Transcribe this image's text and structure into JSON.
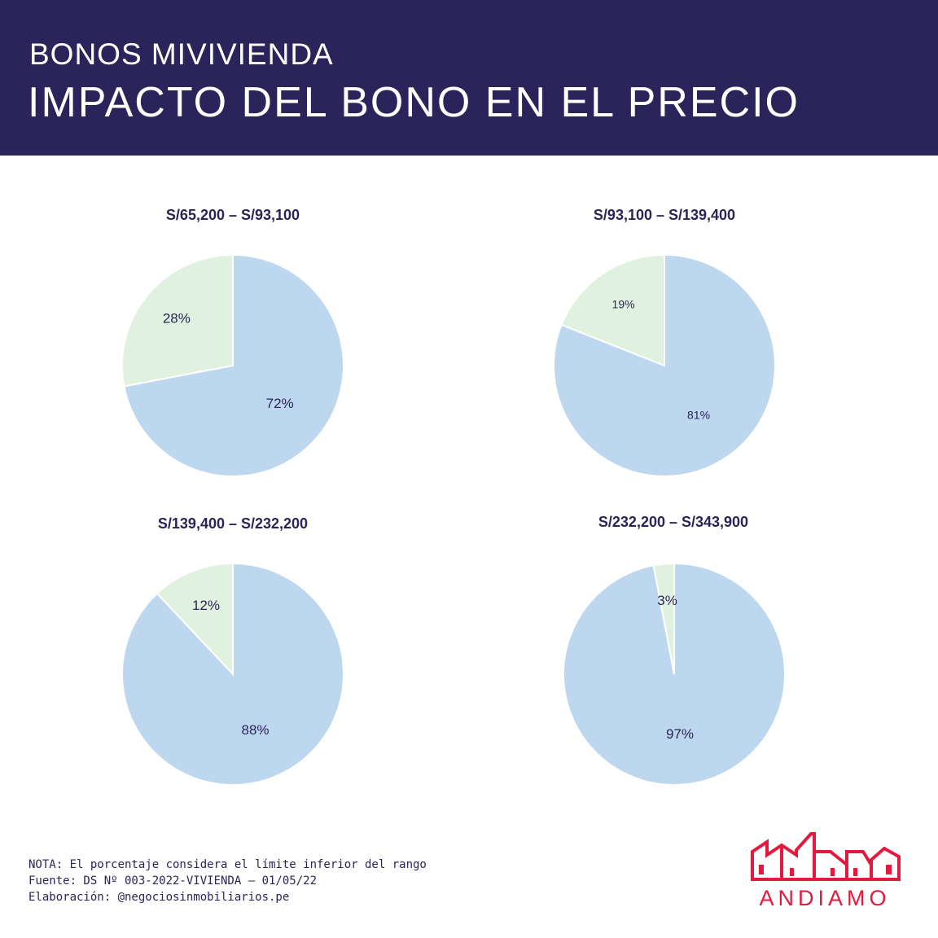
{
  "header": {
    "subtitle": "BONOS MIVIVIENDA",
    "title": "IMPACTO DEL BONO EN EL PRECIO"
  },
  "colors": {
    "header_bg": "#2b245b",
    "price_slice": "#bdd7ee",
    "bono_slice": "#e0f2df",
    "brand": "#e5193f"
  },
  "chart_data": [
    {
      "type": "pie",
      "title": "S/65,200 – S/93,100",
      "slices": [
        {
          "value": 28,
          "label": "28%"
        },
        {
          "value": 72,
          "label": "72%"
        }
      ]
    },
    {
      "type": "pie",
      "title": "S/93,100 – S/139,400",
      "slices": [
        {
          "value": 19,
          "label": "19%"
        },
        {
          "value": 81,
          "label": "81%"
        }
      ]
    },
    {
      "type": "pie",
      "title": "S/139,400 – S/232,200",
      "slices": [
        {
          "value": 12,
          "label": "12%"
        },
        {
          "value": 88,
          "label": "88%"
        }
      ]
    },
    {
      "type": "pie",
      "title": "S/232,200 – S/343,900",
      "slices": [
        {
          "value": 3,
          "label": "3%"
        },
        {
          "value": 97,
          "label": "97%"
        }
      ]
    }
  ],
  "notes": [
    "NOTA: El porcentaje considera el límite inferior del rango",
    "Fuente: DS Nº 003-2022-VIVIENDA – 01/05/22",
    "Elaboración: @negociosinmobiliarios.pe"
  ],
  "logo": {
    "icon": "buildings-outline-icon",
    "text": "ANDIAMO"
  }
}
